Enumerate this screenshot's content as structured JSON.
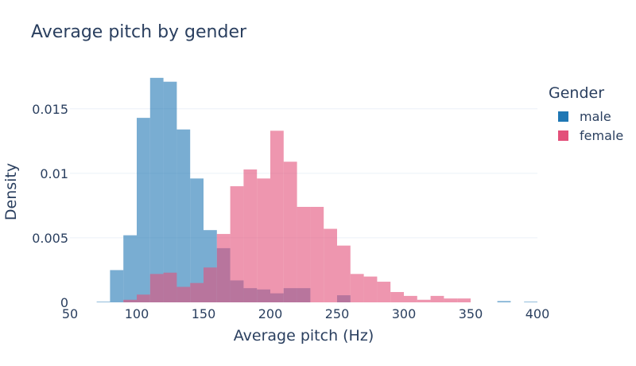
{
  "chart_data": {
    "type": "histogram",
    "title": "Average pitch by gender",
    "xlabel": "Average pitch (Hz)",
    "ylabel": "Density",
    "xlim": [
      50,
      400
    ],
    "ylim": [
      0,
      0.0185
    ],
    "x_ticks": [
      50,
      100,
      150,
      200,
      250,
      300,
      350,
      400
    ],
    "x_tick_labels": [
      "50",
      "100",
      "150",
      "200",
      "250",
      "300",
      "350",
      "400"
    ],
    "y_ticks": [
      0,
      0.005,
      0.01,
      0.015
    ],
    "y_tick_labels": [
      "0",
      "0.005",
      "0.01",
      "0.015"
    ],
    "grid": true,
    "bin_width": 10,
    "legend": {
      "title": "Gender",
      "placement": "top-right"
    },
    "series": [
      {
        "name": "male",
        "color": "#1f77b4",
        "bins": [
          {
            "x0": 70,
            "y": 5e-05
          },
          {
            "x0": 80,
            "y": 0.0025
          },
          {
            "x0": 90,
            "y": 0.0052
          },
          {
            "x0": 100,
            "y": 0.0143
          },
          {
            "x0": 110,
            "y": 0.0174
          },
          {
            "x0": 120,
            "y": 0.0171
          },
          {
            "x0": 130,
            "y": 0.0134
          },
          {
            "x0": 140,
            "y": 0.0096
          },
          {
            "x0": 150,
            "y": 0.0056
          },
          {
            "x0": 160,
            "y": 0.0042
          },
          {
            "x0": 170,
            "y": 0.0017
          },
          {
            "x0": 180,
            "y": 0.0011
          },
          {
            "x0": 190,
            "y": 0.001
          },
          {
            "x0": 200,
            "y": 0.0007
          },
          {
            "x0": 210,
            "y": 0.0011
          },
          {
            "x0": 220,
            "y": 0.0011
          },
          {
            "x0": 230,
            "y": 0.0
          },
          {
            "x0": 240,
            "y": 0.0
          },
          {
            "x0": 250,
            "y": 0.00055
          },
          {
            "x0": 260,
            "y": 0.0
          },
          {
            "x0": 370,
            "y": 0.0001
          },
          {
            "x0": 390,
            "y": 5e-05
          }
        ]
      },
      {
        "name": "female",
        "color": "#e3507a",
        "bins": [
          {
            "x0": 90,
            "y": 0.0002
          },
          {
            "x0": 100,
            "y": 0.0006
          },
          {
            "x0": 110,
            "y": 0.0022
          },
          {
            "x0": 120,
            "y": 0.0023
          },
          {
            "x0": 130,
            "y": 0.0012
          },
          {
            "x0": 140,
            "y": 0.0015
          },
          {
            "x0": 150,
            "y": 0.0027
          },
          {
            "x0": 160,
            "y": 0.0053
          },
          {
            "x0": 170,
            "y": 0.009
          },
          {
            "x0": 180,
            "y": 0.0103
          },
          {
            "x0": 190,
            "y": 0.0096
          },
          {
            "x0": 200,
            "y": 0.0133
          },
          {
            "x0": 210,
            "y": 0.0109
          },
          {
            "x0": 220,
            "y": 0.0074
          },
          {
            "x0": 230,
            "y": 0.0074
          },
          {
            "x0": 240,
            "y": 0.0057
          },
          {
            "x0": 250,
            "y": 0.0044
          },
          {
            "x0": 260,
            "y": 0.0022
          },
          {
            "x0": 270,
            "y": 0.002
          },
          {
            "x0": 280,
            "y": 0.0016
          },
          {
            "x0": 290,
            "y": 0.0008
          },
          {
            "x0": 300,
            "y": 0.0005
          },
          {
            "x0": 310,
            "y": 0.0002
          },
          {
            "x0": 320,
            "y": 0.0005
          },
          {
            "x0": 330,
            "y": 0.0003
          },
          {
            "x0": 340,
            "y": 0.0003
          }
        ]
      }
    ]
  }
}
